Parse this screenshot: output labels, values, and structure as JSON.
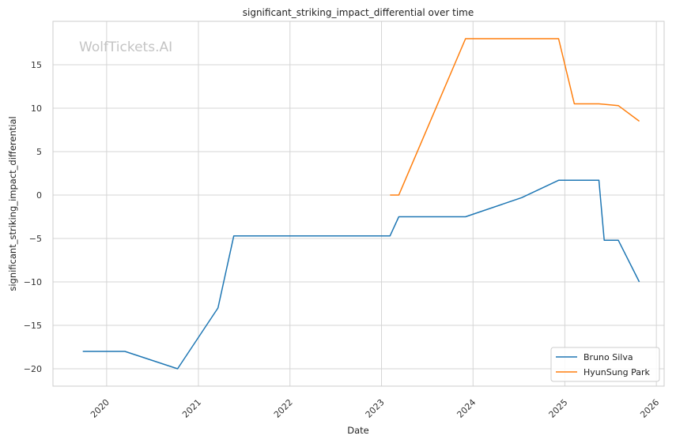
{
  "chart_data": {
    "type": "line",
    "title": "significant_striking_impact_differential over time",
    "xlabel": "Date",
    "ylabel": "significant_striking_impact_differential",
    "watermark": "WolfTickets.AI",
    "x_ticks": [
      "2020",
      "2021",
      "2022",
      "2023",
      "2024",
      "2025",
      "2026"
    ],
    "y_ticks": [
      -20,
      -15,
      -10,
      -5,
      0,
      5,
      10,
      15
    ],
    "xlim": [
      "2019-06-01",
      "2026-02-01"
    ],
    "ylim": [
      -22,
      20
    ],
    "grid": true,
    "legend_position": "lower-right",
    "series": [
      {
        "name": "Bruno Silva",
        "color": "#1f77b4",
        "points": [
          [
            "2019-09-28",
            -18.0
          ],
          [
            "2020-03-14",
            -18.0
          ],
          [
            "2020-10-10",
            -20.0
          ],
          [
            "2021-03-20",
            -13.0
          ],
          [
            "2021-05-22",
            -4.7
          ],
          [
            "2023-02-04",
            -4.7
          ],
          [
            "2023-03-11",
            -2.5
          ],
          [
            "2023-12-02",
            -2.5
          ],
          [
            "2024-07-13",
            -0.3
          ],
          [
            "2024-12-07",
            1.7
          ],
          [
            "2025-05-17",
            1.7
          ],
          [
            "2025-06-07",
            -5.2
          ],
          [
            "2025-08-02",
            -5.2
          ],
          [
            "2025-10-25",
            -10.0
          ]
        ]
      },
      {
        "name": "HyunSung Park",
        "color": "#ff7f0e",
        "points": [
          [
            "2023-02-04",
            0.0
          ],
          [
            "2023-03-11",
            0.0
          ],
          [
            "2023-12-02",
            18.0
          ],
          [
            "2024-12-07",
            18.0
          ],
          [
            "2025-02-08",
            10.5
          ],
          [
            "2025-05-17",
            10.5
          ],
          [
            "2025-08-02",
            10.3
          ],
          [
            "2025-10-25",
            8.5
          ]
        ]
      }
    ]
  }
}
